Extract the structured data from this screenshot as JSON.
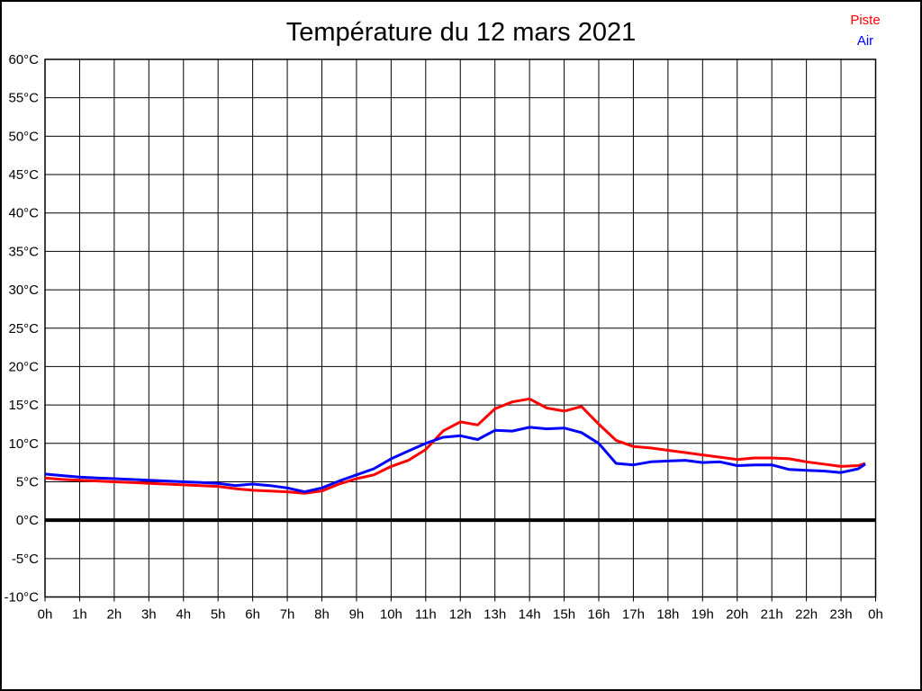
{
  "title": "Température du 12 mars 2021",
  "legend": {
    "items": [
      {
        "label": "Piste",
        "color": "#ff0000"
      },
      {
        "label": "Air",
        "color": "#0000ff"
      }
    ]
  },
  "colors": {
    "piste": "#ff0000",
    "air": "#0000ff",
    "grid": "#000000",
    "zero_line": "#000000",
    "background": "#ffffff"
  },
  "chart_data": {
    "type": "line",
    "title": "Température du 12 mars 2021",
    "xlabel": "",
    "ylabel": "",
    "xlim": [
      0,
      24
    ],
    "ylim": [
      -10,
      60
    ],
    "grid": true,
    "zero_line_value": 0,
    "legend_position": "top-right",
    "x_tick_labels": [
      "0h",
      "1h",
      "2h",
      "3h",
      "4h",
      "5h",
      "6h",
      "7h",
      "8h",
      "9h",
      "10h",
      "11h",
      "12h",
      "13h",
      "14h",
      "15h",
      "16h",
      "17h",
      "18h",
      "19h",
      "20h",
      "21h",
      "22h",
      "23h",
      "0h"
    ],
    "y_tick_labels": [
      "-10°C",
      "-5°C",
      "0°C",
      "5°C",
      "10°C",
      "15°C",
      "20°C",
      "25°C",
      "30°C",
      "35°C",
      "40°C",
      "45°C",
      "50°C",
      "55°C",
      "60°C"
    ],
    "y_tick_values": [
      -10,
      -5,
      0,
      5,
      10,
      15,
      20,
      25,
      30,
      35,
      40,
      45,
      50,
      55,
      60
    ],
    "x": [
      0,
      0.5,
      1,
      1.5,
      2,
      2.5,
      3,
      3.5,
      4,
      4.5,
      5,
      5.5,
      6,
      6.5,
      7,
      7.5,
      8,
      8.5,
      9,
      9.5,
      10,
      10.5,
      11,
      11.5,
      12,
      12.5,
      13,
      13.5,
      14,
      14.5,
      15,
      15.5,
      16,
      16.5,
      17,
      17.5,
      18,
      18.5,
      19,
      19.5,
      20,
      20.5,
      21,
      21.5,
      22,
      22.5,
      23,
      23.5,
      23.7
    ],
    "series": [
      {
        "name": "Piste",
        "color": "#ff0000",
        "values": [
          5.5,
          5.3,
          5.2,
          5.1,
          5.0,
          4.9,
          4.8,
          4.7,
          4.6,
          4.5,
          4.4,
          4.1,
          3.9,
          3.8,
          3.7,
          3.5,
          3.8,
          4.7,
          5.4,
          5.9,
          7.0,
          7.8,
          9.2,
          11.6,
          12.8,
          12.4,
          14.5,
          15.4,
          15.8,
          14.6,
          14.2,
          14.8,
          12.5,
          10.4,
          9.6,
          9.4,
          9.1,
          8.8,
          8.5,
          8.2,
          7.9,
          8.1,
          8.1,
          8.0,
          7.6,
          7.3,
          7.0,
          7.1,
          7.4
        ]
      },
      {
        "name": "Air",
        "color": "#0000ff",
        "values": [
          6.0,
          5.8,
          5.6,
          5.5,
          5.4,
          5.3,
          5.2,
          5.1,
          5.0,
          4.9,
          4.8,
          4.5,
          4.7,
          4.5,
          4.2,
          3.7,
          4.2,
          5.1,
          5.9,
          6.7,
          8.0,
          9.0,
          10.0,
          10.8,
          11.0,
          10.5,
          11.7,
          11.6,
          12.1,
          11.9,
          12.0,
          11.4,
          10.0,
          7.4,
          7.2,
          7.6,
          7.7,
          7.8,
          7.5,
          7.6,
          7.1,
          7.2,
          7.2,
          6.6,
          6.5,
          6.4,
          6.2,
          6.7,
          7.3
        ]
      }
    ]
  }
}
